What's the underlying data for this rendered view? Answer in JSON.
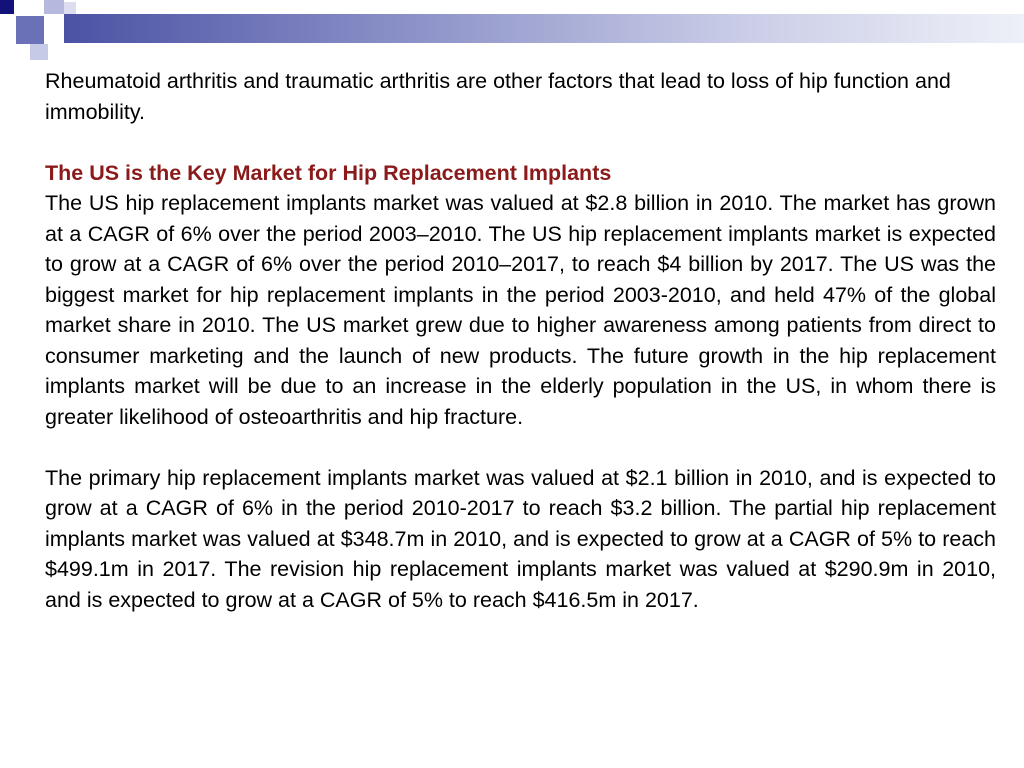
{
  "slide": {
    "intro": "Rheumatoid arthritis and traumatic arthritis are other factors that lead to loss of hip function and immobility.",
    "heading": "The US is the Key Market for Hip Replacement Implants",
    "paragraph1": "The US hip replacement implants market was valued at $2.8 billion in 2010. The market has grown at a CAGR of 6% over the period 2003–2010. The US hip replacement implants market is expected to grow at a CAGR of 6% over the period 2010–2017, to reach $4 billion by 2017. The US was the biggest market for hip replacement implants in the period 2003-2010, and held 47% of the global market share in 2010. The US market grew due to higher awareness among patients from direct to consumer marketing and the launch of new products. The future growth in the hip replacement implants market will be due to an increase in the elderly population in the US, in whom there is greater likelihood of osteoarthritis and hip fracture.",
    "paragraph2": "The primary hip replacement implants market was valued at $2.1 billion in 2010, and is expected to grow at a CAGR of 6% in the period 2010-2017 to reach $3.2 billion. The partial hip replacement implants market was valued at $348.7m in 2010, and is expected to grow at a CAGR of 5% to reach $499.1m in 2017. The revision hip replacement implants market was valued at $290.9m in 2010, and is expected to grow at a CAGR of 5% to reach $416.5m in 2017."
  },
  "colors": {
    "heading": "#8b1a1a",
    "header_bar_start": "#4b52a4",
    "header_bar_end": "#eef0f8",
    "square_dark": "#12127a"
  }
}
